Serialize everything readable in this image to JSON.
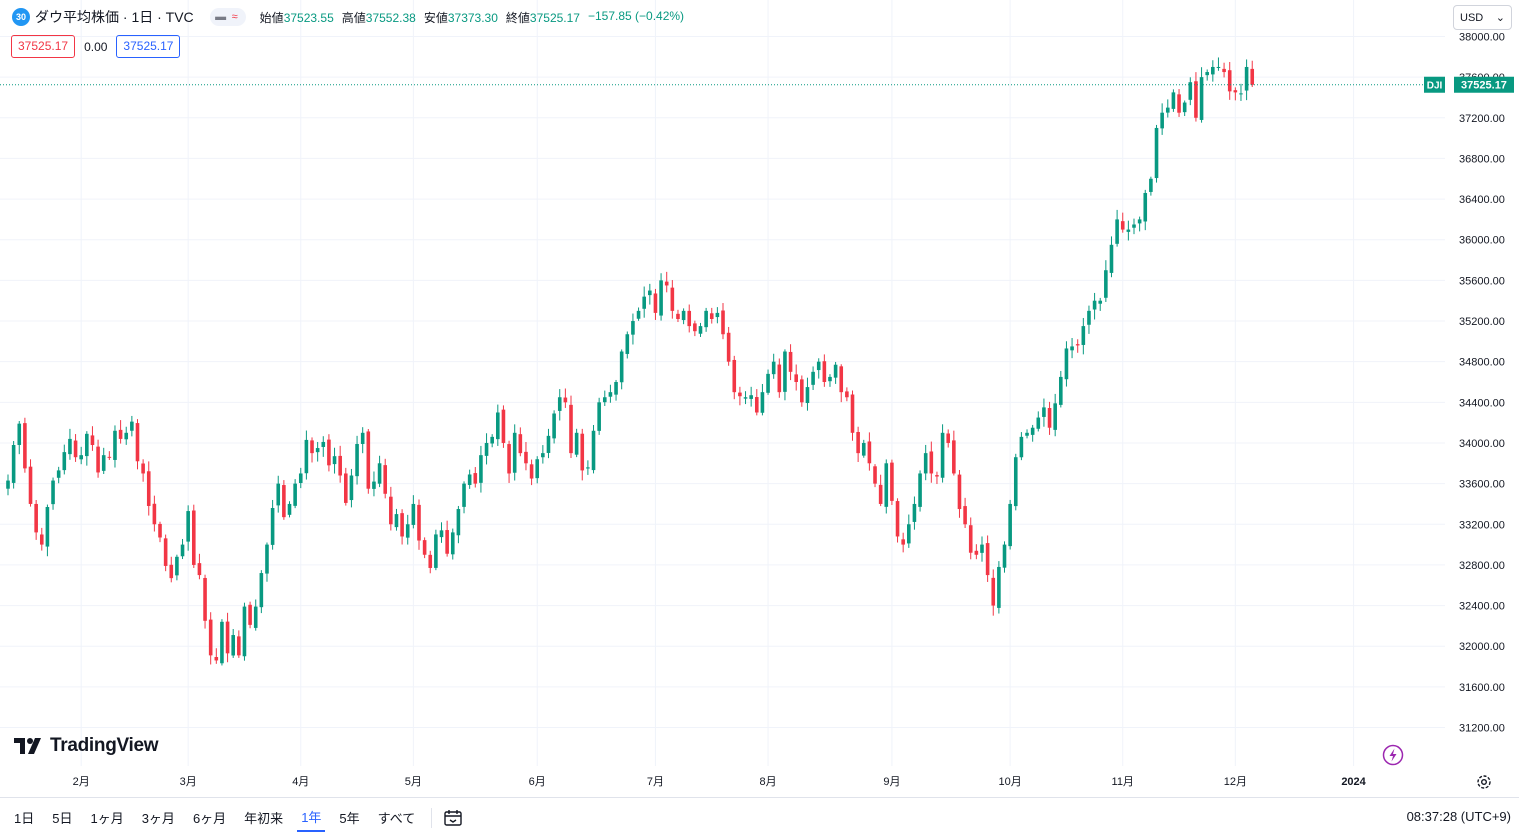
{
  "legend": {
    "badge": "30",
    "title": "ダウ平均株価 · 1日 · TVC",
    "open_label": "始値",
    "open": "37523.55",
    "high_label": "高値",
    "high": "37552.38",
    "low_label": "安値",
    "low": "37373.30",
    "close_label": "終値",
    "close": "37525.17",
    "change": "−157.85 (−0.42%)"
  },
  "price_boxes": {
    "bid": "37525.17",
    "spread": "0.00",
    "ask": "37525.17"
  },
  "currency": "USD",
  "last_price_tag": {
    "symbol": "DJI",
    "price": "37525.17"
  },
  "logo_text": "TradingView",
  "colors": {
    "up": "#089981",
    "down": "#f23645",
    "grid": "#f0f3fa",
    "last_line": "#089981"
  },
  "icons": [
    "chevron-down-icon",
    "lightning-icon",
    "gear-icon",
    "calendar-range-icon",
    "tradingview-logo-icon"
  ],
  "range_buttons": [
    "1日",
    "5日",
    "1ヶ月",
    "3ヶ月",
    "6ヶ月",
    "年初来",
    "1年",
    "5年",
    "すべて"
  ],
  "active_range": "1年",
  "clock": "08:37:28 (UTC+9)",
  "chart_data": {
    "type": "candlestick",
    "title": "ダウ平均株価 · 1日 · TVC",
    "ylim": [
      30900,
      38300
    ],
    "y_ticks": [
      31200,
      31600,
      32000,
      32400,
      32800,
      33200,
      33600,
      34000,
      34400,
      34800,
      35200,
      35600,
      36000,
      36400,
      36800,
      37200,
      37600,
      38000
    ],
    "y_tick_labels": [
      "31200.00",
      "31600.00",
      "32000.00",
      "32400.00",
      "32800.00",
      "33200.00",
      "33600.00",
      "34000.00",
      "34400.00",
      "34800.00",
      "35200.00",
      "35600.00",
      "36000.00",
      "36400.00",
      "36800.00",
      "37200.00",
      "37600.00",
      "38000.00"
    ],
    "x_ticks": [
      "2月",
      "3月",
      "4月",
      "5月",
      "6月",
      "7月",
      "8月",
      "9月",
      "10月",
      "11月",
      "12月",
      "2024"
    ],
    "x_tick_index": [
      13,
      32,
      52,
      72,
      94,
      115,
      135,
      157,
      178,
      198,
      218,
      239
    ],
    "last_price": 37525.17,
    "grid": true,
    "close": [
      33630,
      33980,
      34190,
      33750,
      33400,
      33120,
      33000,
      33370,
      33630,
      33730,
      33910,
      34040,
      33860,
      33880,
      34090,
      33980,
      33710,
      33880,
      33860,
      34120,
      34040,
      34100,
      34210,
      33820,
      33700,
      33380,
      33200,
      33070,
      32790,
      32670,
      32880,
      33000,
      33330,
      32800,
      32700,
      32250,
      31910,
      31860,
      32240,
      31930,
      32110,
      31910,
      32390,
      32210,
      32390,
      32720,
      33000,
      33360,
      33600,
      33270,
      33400,
      33600,
      33700,
      34030,
      33900,
      33950,
      34010,
      33780,
      33870,
      33680,
      33410,
      33680,
      33990,
      34100,
      33550,
      33620,
      33800,
      33500,
      33200,
      33300,
      33080,
      33200,
      33400,
      33040,
      32900,
      32770,
      33100,
      33140,
      32910,
      33120,
      33350,
      33600,
      33690,
      33600,
      33880,
      34000,
      34060,
      34300,
      34000,
      33700,
      34100,
      33900,
      33800,
      33650,
      33840,
      33900,
      34070,
      34290,
      34450,
      34400,
      33900,
      34100,
      33730,
      33760,
      34120,
      34400,
      34450,
      34500,
      34600,
      34900,
      35070,
      35200,
      35300,
      35440,
      35500,
      35280,
      35600,
      35550,
      35300,
      35220,
      35300,
      35150,
      35100,
      35150,
      35300,
      35220,
      35280,
      35070,
      34800,
      34500,
      34460,
      34450,
      34470,
      34300,
      34500,
      34680,
      34800,
      34500,
      34900,
      34700,
      34600,
      34400,
      34550,
      34700,
      34800,
      34600,
      34650,
      34770,
      34500,
      34450,
      34100,
      33900,
      34000,
      33800,
      33600,
      33400,
      33800,
      33430,
      33080,
      33000,
      33200,
      33400,
      33700,
      33900,
      33700,
      33670,
      34100,
      34000,
      33700,
      33350,
      33200,
      32920,
      32900,
      33000,
      32700,
      32400,
      32780,
      33000,
      33400,
      33860,
      34060,
      34100,
      34150,
      34250,
      34350,
      34150,
      34390,
      34650,
      34930,
      34950,
      34960,
      35150,
      35300,
      35400,
      35400,
      35700,
      35950,
      36200,
      36100,
      36100,
      36150,
      36200,
      36460,
      36600,
      37100,
      37250,
      37300,
      37450,
      37250,
      37350,
      37550,
      37200,
      37600,
      37650,
      37700,
      37700,
      37650,
      37460,
      37450,
      37440,
      37700,
      37525
    ]
  }
}
